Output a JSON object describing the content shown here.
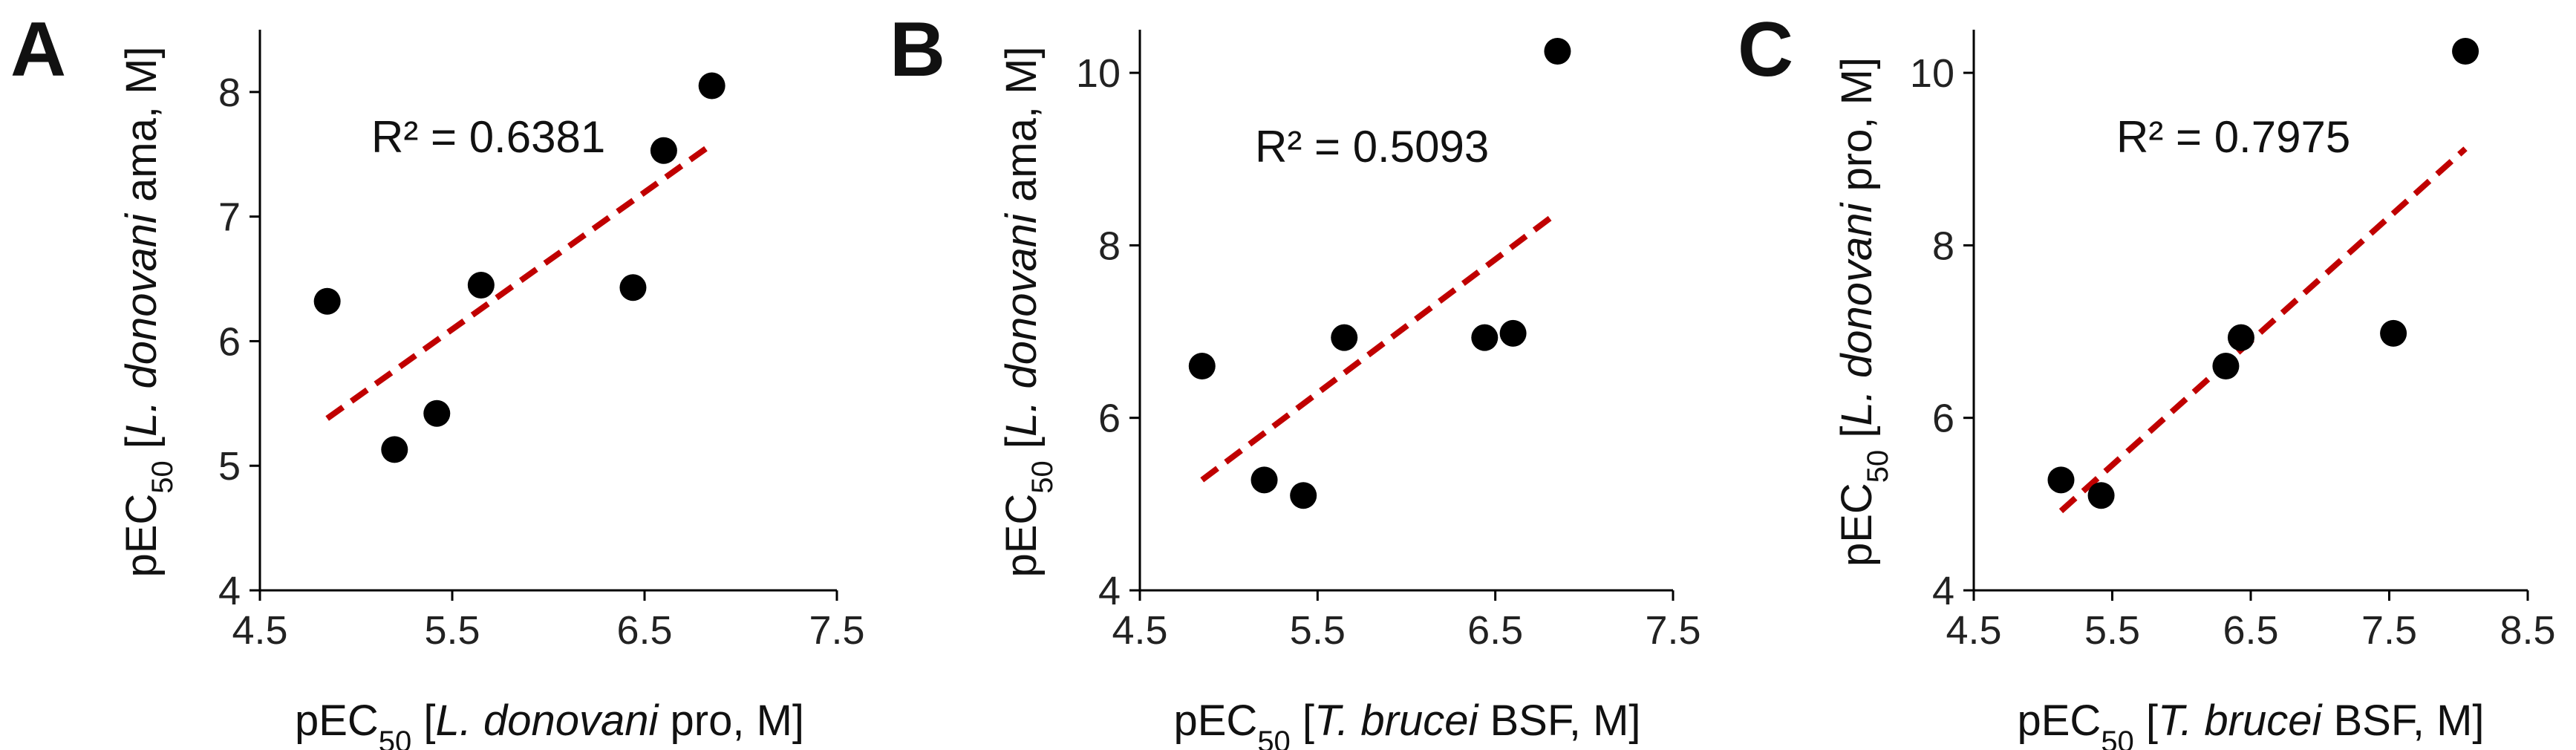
{
  "chart_data": [
    {
      "type": "scatter",
      "panel": "A",
      "x": [
        4.85,
        5.2,
        5.42,
        5.65,
        6.44,
        6.6,
        6.85
      ],
      "y": [
        6.32,
        5.13,
        5.42,
        6.45,
        6.43,
        7.53,
        8.05
      ],
      "trendline": {
        "style": "dashed",
        "x": [
          4.85,
          6.85
        ],
        "y": [
          5.38,
          7.58
        ]
      },
      "annotation": "R² = 0.6381",
      "xlim": [
        4.5,
        7.5
      ],
      "ylim": [
        4,
        8.5
      ],
      "xticks": [
        "4.5",
        "5.5",
        "6.5",
        "7.5"
      ],
      "yticks": [
        "4",
        "5",
        "6",
        "7",
        "8"
      ],
      "xlabel": {
        "prefix": "pEC",
        "sub": "50",
        "open": " [",
        "italic": "L. donovani",
        "rest": " pro, M]"
      },
      "ylabel": {
        "prefix": "pEC",
        "sub": "50",
        "open": " [",
        "italic": "L. donovani",
        "rest": " ama, M]"
      }
    },
    {
      "type": "scatter",
      "panel": "B",
      "x": [
        4.85,
        5.2,
        5.42,
        5.65,
        6.44,
        6.6,
        6.85
      ],
      "y": [
        6.6,
        5.28,
        5.1,
        6.93,
        6.93,
        6.98,
        10.25
      ],
      "trendline": {
        "style": "dashed",
        "x": [
          4.85,
          6.85
        ],
        "y": [
          5.28,
          8.38
        ]
      },
      "annotation": "R² = 0.5093",
      "xlim": [
        4.5,
        7.5
      ],
      "ylim": [
        4,
        10.5
      ],
      "xticks": [
        "4.5",
        "5.5",
        "6.5",
        "7.5"
      ],
      "yticks": [
        "4",
        "6",
        "8",
        "10"
      ],
      "xlabel": {
        "prefix": "pEC",
        "sub": "50",
        "open": " [",
        "italic": "T. brucei",
        "rest": " BSF, M]"
      },
      "ylabel": {
        "prefix": "pEC",
        "sub": "50",
        "open": " [",
        "italic": "L. donovani",
        "rest": " ama, M]"
      }
    },
    {
      "type": "scatter",
      "panel": "C",
      "x": [
        5.13,
        5.42,
        6.32,
        6.43,
        7.53,
        8.05
      ],
      "y": [
        5.28,
        5.1,
        6.6,
        6.93,
        6.98,
        10.25
      ],
      "trendline": {
        "style": "dashed",
        "x": [
          5.13,
          8.05
        ],
        "y": [
          4.92,
          9.12
        ]
      },
      "annotation": "R² = 0.7975",
      "xlim": [
        4.5,
        8.5
      ],
      "ylim": [
        4,
        10.5
      ],
      "xticks": [
        "4.5",
        "5.5",
        "6.5",
        "7.5",
        "8.5"
      ],
      "yticks": [
        "4",
        "6",
        "8",
        "10"
      ],
      "xlabel": {
        "prefix": "pEC",
        "sub": "50",
        "open": " [",
        "italic": "T. brucei",
        "rest": " BSF, M]"
      },
      "ylabel": {
        "prefix": "pEC",
        "sub": "50",
        "open": " [",
        "italic": "L. donovani",
        "rest": " pro, M]"
      }
    }
  ],
  "colors": {
    "points": "#000000",
    "trendline": "#c00000",
    "axis": "#000000",
    "text": "#111111"
  }
}
